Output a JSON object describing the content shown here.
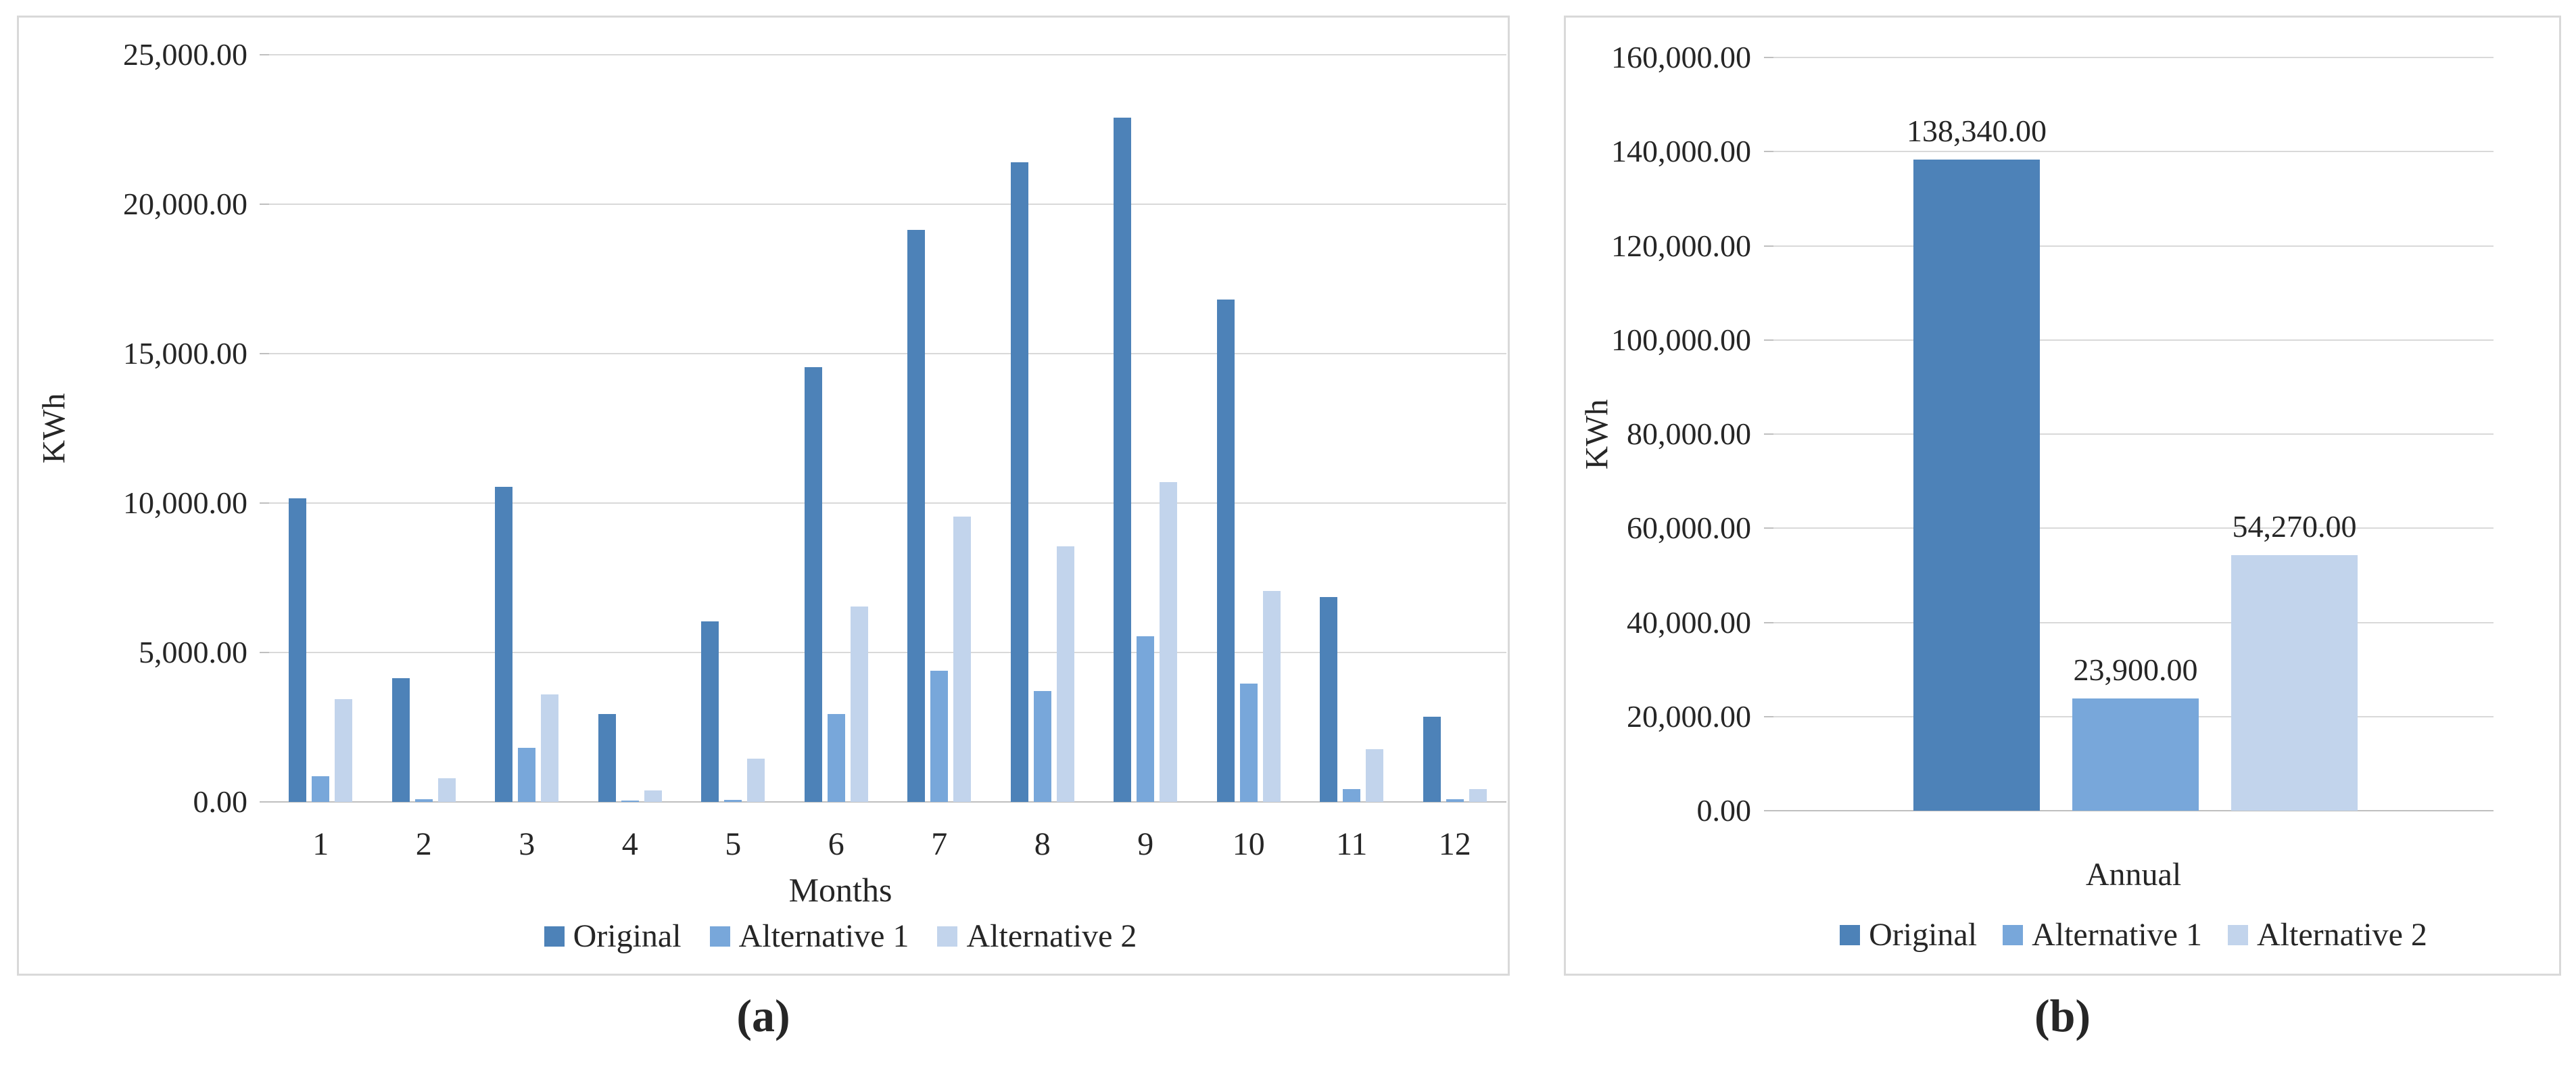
{
  "captions": {
    "a": "(a)",
    "b": "(b)"
  },
  "colors": {
    "original": "#4D82B8",
    "alternative1": "#78A7DA",
    "alternative2": "#C2D4EC",
    "gridline": "#D9D9D9",
    "axis_line": "#BFBFBF",
    "text": "#262626",
    "panel_border": "#D9D9D9",
    "panel_background": "#FFFFFF"
  },
  "chart_data": [
    {
      "id": "monthly-consumption",
      "type": "bar",
      "title": "",
      "xlabel": "Months",
      "ylabel": "KWh",
      "ylim": [
        0,
        25000
      ],
      "ytick_step": 5000,
      "ytick_labels": [
        "0.00",
        "5,000.00",
        "10,000.00",
        "15,000.00",
        "20,000.00",
        "25,000.00"
      ],
      "grid": true,
      "legend_position": "bottom",
      "categories": [
        "1",
        "2",
        "3",
        "4",
        "5",
        "6",
        "7",
        "8",
        "9",
        "10",
        "11",
        "12"
      ],
      "legend": [
        "Original",
        "Alternative 1",
        "Alternative 2"
      ],
      "series": [
        {
          "name": "Original",
          "values": [
            10150,
            4150,
            10550,
            2940,
            6050,
            14550,
            19150,
            21400,
            22900,
            16800,
            6850,
            2850
          ]
        },
        {
          "name": "Alternative 1",
          "values": [
            850,
            80,
            1800,
            30,
            60,
            2950,
            4400,
            3700,
            5550,
            3950,
            430,
            100
          ]
        },
        {
          "name": "Alternative 2",
          "values": [
            3450,
            800,
            3600,
            380,
            1450,
            6550,
            9550,
            8550,
            10700,
            7050,
            1770,
            420
          ]
        }
      ]
    },
    {
      "id": "annual-consumption",
      "type": "bar",
      "title": "",
      "xlabel": "",
      "ylabel": "KWh",
      "ylim": [
        0,
        160000
      ],
      "ytick_step": 20000,
      "ytick_labels": [
        "0.00",
        "20,000.00",
        "40,000.00",
        "60,000.00",
        "80,000.00",
        "100,000.00",
        "120,000.00",
        "140,000.00",
        "160,000.00"
      ],
      "grid": true,
      "legend_position": "bottom",
      "categories": [
        "Annual"
      ],
      "legend": [
        "Original",
        "Alternative 1",
        "Alternative 2"
      ],
      "series": [
        {
          "name": "Original",
          "values": [
            138340
          ],
          "data_label": "138,340.00"
        },
        {
          "name": "Alternative 1",
          "values": [
            23900
          ],
          "data_label": "23,900.00"
        },
        {
          "name": "Alternative 2",
          "values": [
            54270
          ],
          "data_label": "54,270.00"
        }
      ]
    }
  ]
}
